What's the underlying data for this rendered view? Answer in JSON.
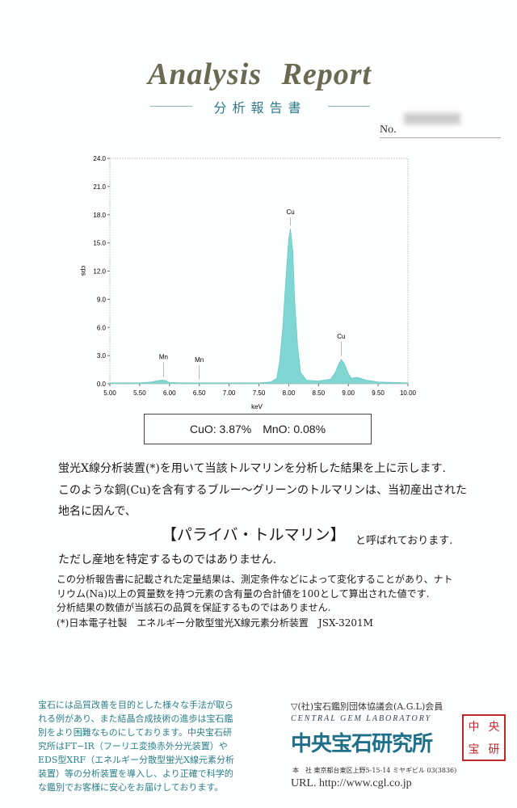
{
  "header": {
    "title": "Analysis Report",
    "subtitle": "分析報告書",
    "number_label": "No."
  },
  "chart_data": {
    "type": "area",
    "xlabel": "keV",
    "ylabel": "cps",
    "xlim": [
      5.0,
      10.0
    ],
    "ylim": [
      0.0,
      24.0
    ],
    "x_ticks": [
      "5.00",
      "5.50",
      "6.00",
      "6.50",
      "7.00",
      "7.50",
      "8.00",
      "8.50",
      "9.00",
      "9.50",
      "10.00"
    ],
    "y_ticks": [
      "0.0",
      "3.0",
      "6.0",
      "9.0",
      "12.0",
      "15.0",
      "18.0",
      "21.0",
      "24.0"
    ],
    "color": "#7fd6d2",
    "x": [
      5.0,
      5.5,
      5.7,
      5.82,
      5.88,
      5.93,
      6.0,
      6.2,
      6.5,
      7.0,
      7.5,
      7.7,
      7.8,
      7.85,
      7.9,
      7.95,
      8.0,
      8.03,
      8.07,
      8.1,
      8.15,
      8.2,
      8.3,
      8.5,
      8.7,
      8.78,
      8.83,
      8.88,
      8.93,
      9.0,
      9.05,
      9.15,
      9.2,
      9.3,
      9.5,
      10.0
    ],
    "y": [
      0.1,
      0.1,
      0.2,
      0.35,
      0.4,
      0.35,
      0.15,
      0.1,
      0.1,
      0.1,
      0.1,
      0.2,
      0.6,
      2.5,
      6,
      11,
      15.5,
      16.5,
      14,
      9,
      4,
      1.2,
      0.4,
      0.3,
      0.5,
      1.2,
      2.0,
      2.6,
      2.2,
      1.1,
      0.6,
      0.7,
      0.6,
      0.4,
      0.2,
      0.1
    ],
    "annotations": [
      {
        "label": "Mn",
        "x": 5.9,
        "y": 0.4
      },
      {
        "label": "Mn",
        "x": 6.5,
        "y": 0.1
      },
      {
        "label": "Cu",
        "x": 8.03,
        "y": 16.5
      },
      {
        "label": "Cu",
        "x": 8.88,
        "y": 2.6
      }
    ]
  },
  "result": "CuO: 3.87%　MnO: 0.08%",
  "body": {
    "line1": "蛍光X線分析装置(*)を用いて当該トルマリンを分析した結果を上に示します.",
    "line2": "このような銅(Cu)を含有するブルー～グリーンのトルマリンは、当初産出された",
    "line3": "地名に因んで、",
    "paraiba": "【パライバ・トルマリン】",
    "called": "と呼ばれております.",
    "line4": "ただし産地を特定するものではありません.",
    "note1": "この分析報告書に記載された定量結果は、測定条件などによって変化することがあり、ナト",
    "note2": "リウム(Na)以上の質量数を持つ元素の含有量の合計値を100として算出された値です.",
    "note3": "分析結果の数値が当該石の品質を保証するものではありません.",
    "note4": "(*)日本電子社製　エネルギー分散型蛍光X線元素分析装置　JSX-3201M"
  },
  "footer": {
    "notice": "宝石には品質改善を目的とした様々な手法が取られる例があり、また結晶合成技術の進歩は宝石鑑別をより困難なものにしております。中央宝石研究所はFT−IR（フーリエ変換赤外分光装置）やEDS型XRF（エネルギー分散型蛍光X線元素分析装置）等の分析装置を導入し、より正確で科学的な鑑別でお客様に安心をお届けしております。",
    "agl": "(社)宝石鑑別団体協議会(A.G.L)会員",
    "lab_en": "CENTRAL GEM LABORATORY",
    "lab_jp": "中央宝石研究所",
    "address": "本　社 東京都台東区上野5-15-14 ミヤギビル 03(3836)",
    "url": "URL. http://www.cgl.co.jp",
    "seal": [
      "中",
      "央",
      "宝",
      "研"
    ]
  }
}
